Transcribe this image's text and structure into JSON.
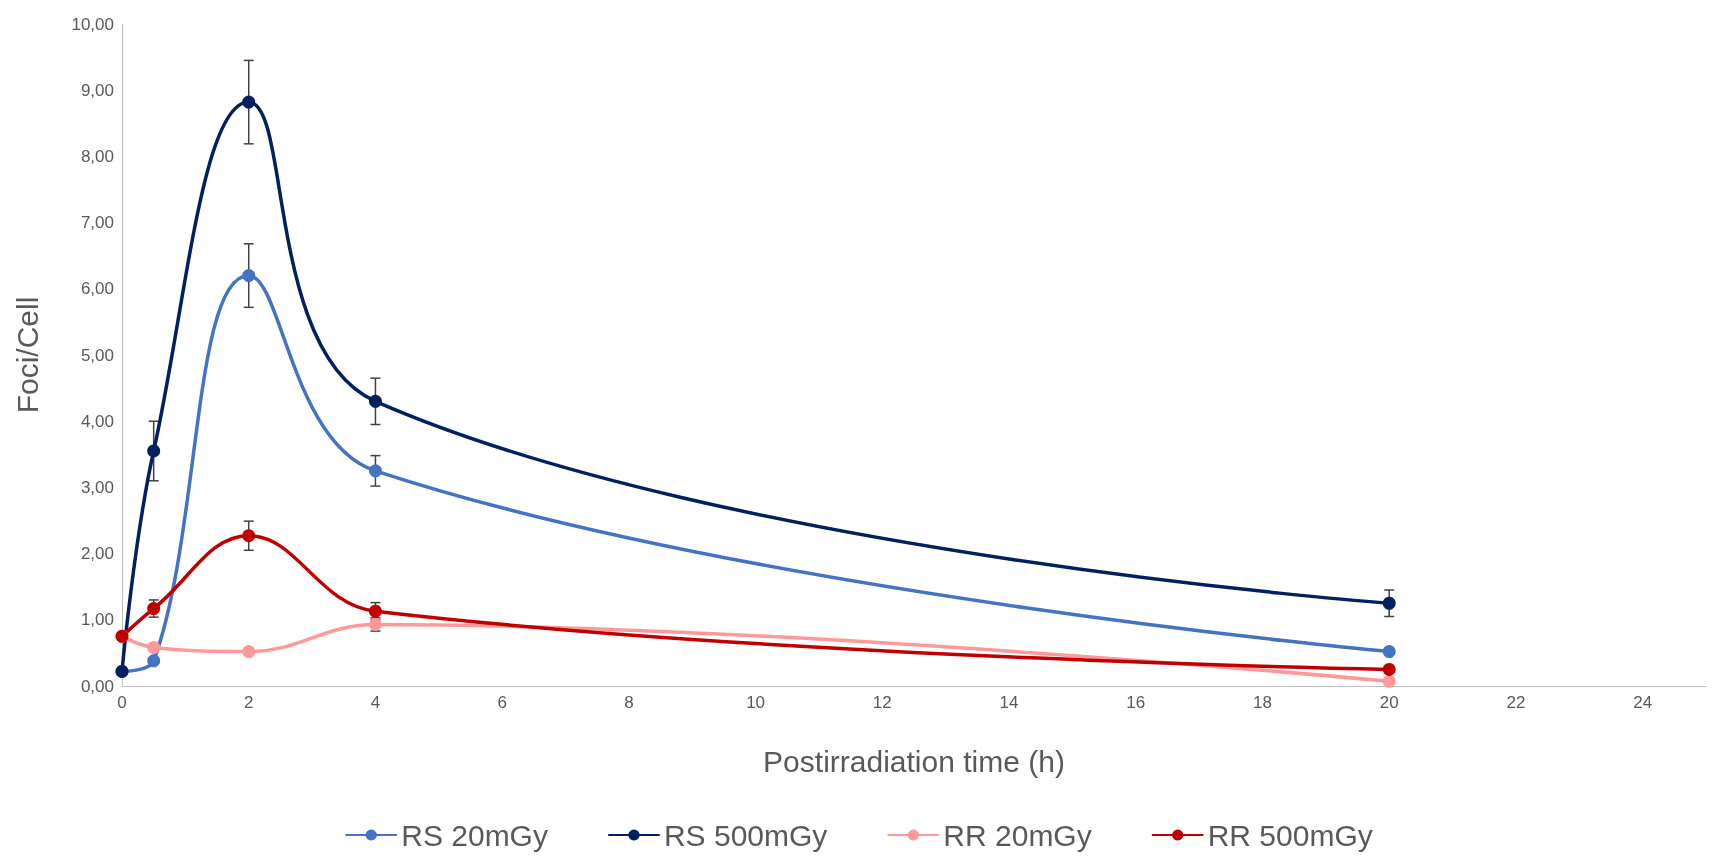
{
  "chart_data": {
    "type": "line",
    "xlabel": "Postirradiation time (h)",
    "ylabel": "Foci/Cell",
    "x": [
      0,
      0.5,
      2,
      4,
      20
    ],
    "series": [
      {
        "name": "RS 20mGy",
        "color": "#4472c4",
        "values": [
          0.22,
          0.38,
          6.2,
          3.25,
          0.52
        ],
        "errors": [
          null,
          null,
          0.48,
          0.23,
          null
        ]
      },
      {
        "name": "RS 500mGy",
        "color": "#002060",
        "values": [
          0.22,
          3.55,
          8.82,
          4.3,
          1.25
        ],
        "errors": [
          null,
          0.45,
          0.63,
          0.35,
          0.2
        ]
      },
      {
        "name": "RR 20mGy",
        "color": "#ff9999",
        "values": [
          0.75,
          0.58,
          0.52,
          0.93,
          0.07
        ],
        "errors": [
          null,
          null,
          null,
          0.1,
          null
        ]
      },
      {
        "name": "RR 500mGy",
        "color": "#c00000",
        "values": [
          0.75,
          1.17,
          2.27,
          1.13,
          0.25
        ],
        "errors": [
          null,
          0.13,
          0.22,
          0.13,
          null
        ]
      }
    ],
    "xlim": [
      0,
      25
    ],
    "xticks": [
      0,
      2,
      4,
      6,
      8,
      10,
      12,
      14,
      16,
      18,
      20,
      22,
      24
    ],
    "ylim": [
      0,
      10
    ],
    "yticks": [
      {
        "value": 0,
        "label": "0,00"
      },
      {
        "value": 1,
        "label": "1,00"
      },
      {
        "value": 2,
        "label": "2,00"
      },
      {
        "value": 3,
        "label": "3,00"
      },
      {
        "value": 4,
        "label": "4,00"
      },
      {
        "value": 5,
        "label": "5,00"
      },
      {
        "value": 6,
        "label": "6,00"
      },
      {
        "value": 7,
        "label": "7,00"
      },
      {
        "value": 8,
        "label": "8,00"
      },
      {
        "value": 9,
        "label": "9,00"
      },
      {
        "value": 10,
        "label": "10,00"
      }
    ],
    "grid": false,
    "legend": "bottom",
    "marker": "circle",
    "line_style": "solid"
  }
}
